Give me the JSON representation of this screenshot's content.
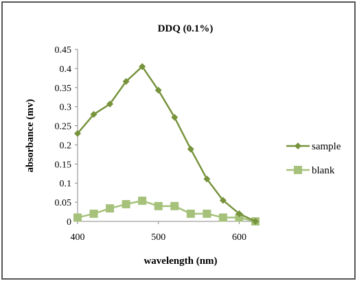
{
  "chart_data": {
    "type": "line",
    "title": "DDQ (0.1%)",
    "xlabel": "wavelength (nm)",
    "ylabel": "absorbance (mv)",
    "xlim": [
      400,
      620
    ],
    "ylim": [
      0,
      0.45
    ],
    "x_ticks": [
      "400",
      "500",
      "600"
    ],
    "y_ticks": [
      "0",
      "0.05",
      "0.1",
      "0.15",
      "0.2",
      "0.25",
      "0.3",
      "0.35",
      "0.4",
      "0.45"
    ],
    "x": [
      400,
      420,
      440,
      460,
      480,
      500,
      520,
      540,
      560,
      580,
      600,
      620
    ],
    "series": [
      {
        "name": "sample",
        "color": "#77933c",
        "marker": "diamond",
        "values": [
          0.23,
          0.28,
          0.307,
          0.366,
          0.405,
          0.343,
          0.272,
          0.189,
          0.111,
          0.055,
          0.02,
          0.0
        ]
      },
      {
        "name": "blank",
        "color": "#a5c17a",
        "marker": "square",
        "values": [
          0.01,
          0.02,
          0.034,
          0.045,
          0.054,
          0.04,
          0.04,
          0.02,
          0.02,
          0.01,
          0.01,
          0.0
        ]
      }
    ],
    "grid": false,
    "legend": "right"
  }
}
